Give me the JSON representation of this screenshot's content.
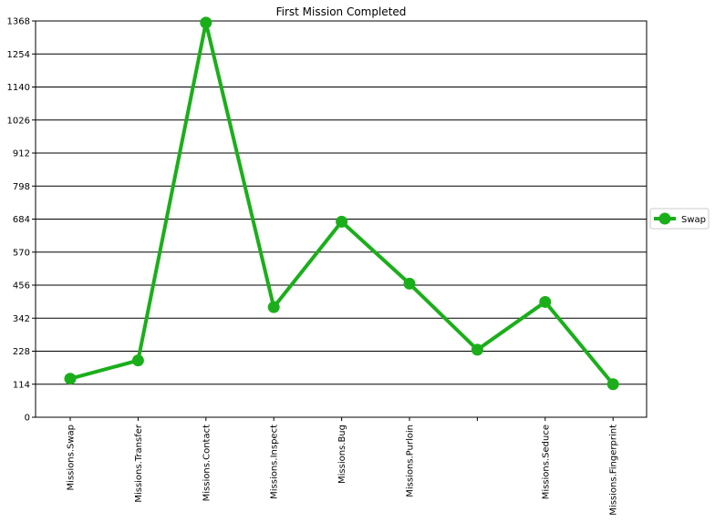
{
  "chart_data": {
    "type": "line",
    "title": "First Mission Completed",
    "xlabel": "",
    "ylabel": "",
    "categories": [
      "Missions.Swap",
      "Missions.Transfer",
      "Missions.Contact",
      "Missions.Inspect",
      "Missions.Bug",
      "Missions.Purloin",
      "",
      "Missions.Seduce",
      "Missions.Fingerprint"
    ],
    "series": [
      {
        "name": "Swap",
        "color": "#1aaf1a",
        "values": [
          133,
          196,
          1362,
          380,
          675,
          461,
          233,
          398,
          114
        ]
      }
    ],
    "yticks": [
      0,
      114,
      228,
      342,
      456,
      570,
      684,
      798,
      912,
      1026,
      1140,
      1254,
      1368
    ],
    "ylim": [
      0,
      1368
    ],
    "grid": "horizontal",
    "legend_position": "right"
  }
}
